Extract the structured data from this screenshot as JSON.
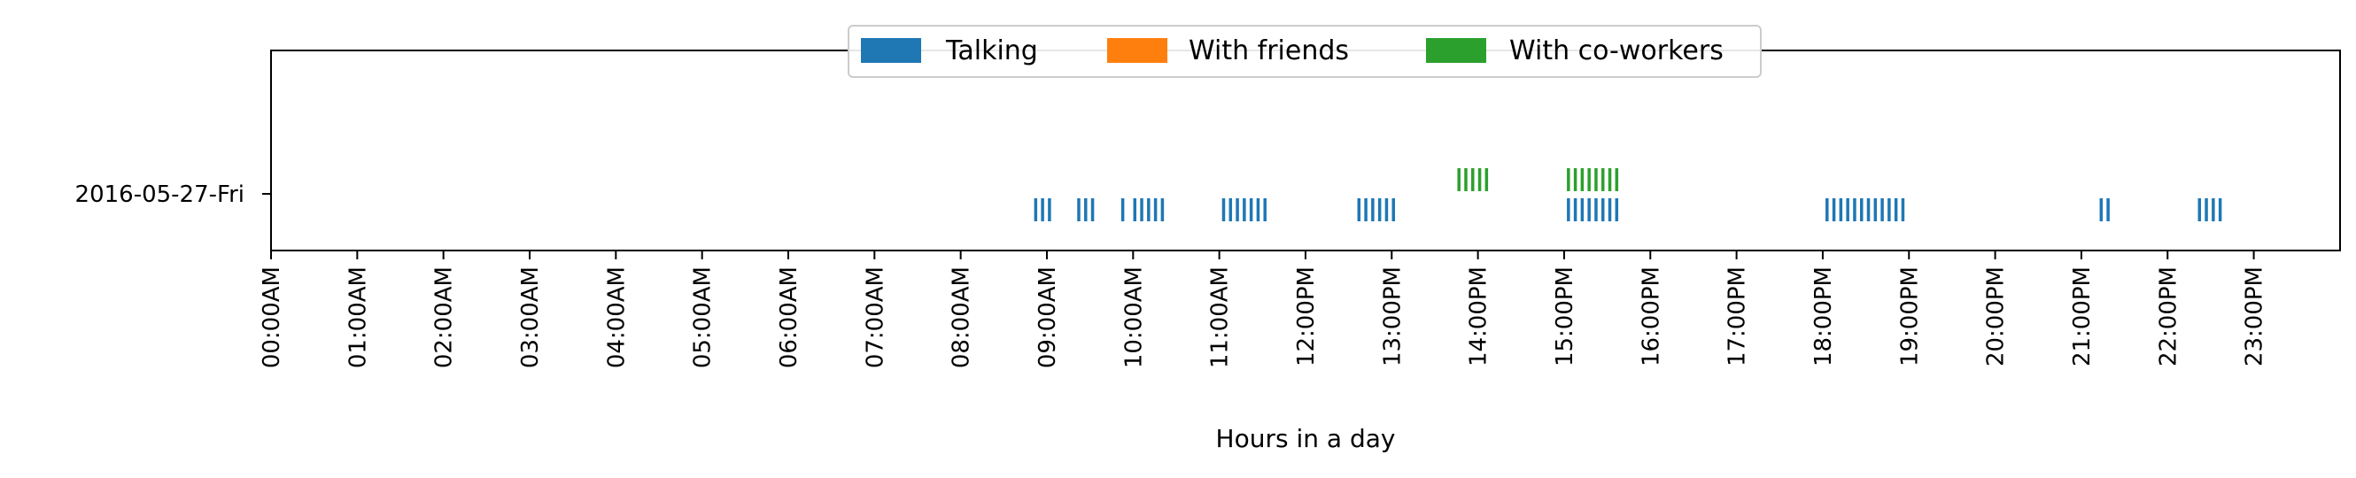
{
  "chart_data": {
    "type": "scatter",
    "title": "",
    "xlabel": "Hours in a day",
    "ylabel": "",
    "xlim": [
      0,
      24
    ],
    "categories": [
      "2016-05-27-Fri"
    ],
    "x_ticks": [
      {
        "value": 0,
        "label": "00:00AM"
      },
      {
        "value": 1,
        "label": "01:00AM"
      },
      {
        "value": 2,
        "label": "02:00AM"
      },
      {
        "value": 3,
        "label": "03:00AM"
      },
      {
        "value": 4,
        "label": "04:00AM"
      },
      {
        "value": 5,
        "label": "05:00AM"
      },
      {
        "value": 6,
        "label": "06:00AM"
      },
      {
        "value": 7,
        "label": "07:00AM"
      },
      {
        "value": 8,
        "label": "08:00AM"
      },
      {
        "value": 9,
        "label": "09:00AM"
      },
      {
        "value": 10,
        "label": "10:00AM"
      },
      {
        "value": 11,
        "label": "11:00AM"
      },
      {
        "value": 12,
        "label": "12:00PM"
      },
      {
        "value": 13,
        "label": "13:00PM"
      },
      {
        "value": 14,
        "label": "14:00PM"
      },
      {
        "value": 15,
        "label": "15:00PM"
      },
      {
        "value": 16,
        "label": "16:00PM"
      },
      {
        "value": 17,
        "label": "17:00PM"
      },
      {
        "value": 18,
        "label": "18:00PM"
      },
      {
        "value": 19,
        "label": "19:00PM"
      },
      {
        "value": 20,
        "label": "20:00PM"
      },
      {
        "value": 21,
        "label": "21:00PM"
      },
      {
        "value": 22,
        "label": "22:00PM"
      },
      {
        "value": 23,
        "label": "23:00PM"
      }
    ],
    "legend": {
      "placement": "top-center"
    },
    "series": [
      {
        "name": "Talking",
        "color": "#1f77b4",
        "x": [
          8.87,
          8.95,
          9.03,
          9.37,
          9.45,
          9.53,
          9.88,
          10.02,
          10.1,
          10.18,
          10.26,
          10.34,
          11.05,
          11.13,
          11.21,
          11.29,
          11.37,
          11.45,
          11.53,
          12.62,
          12.7,
          12.78,
          12.86,
          12.94,
          13.02,
          15.05,
          15.13,
          15.21,
          15.29,
          15.37,
          15.45,
          15.53,
          15.61,
          18.05,
          18.13,
          18.21,
          18.29,
          18.37,
          18.45,
          18.53,
          18.61,
          18.69,
          18.77,
          18.85,
          18.93,
          21.23,
          21.31,
          22.37,
          22.45,
          22.53,
          22.61
        ]
      },
      {
        "name": "With friends",
        "color": "#ff7f0e",
        "x": []
      },
      {
        "name": "With co-workers",
        "color": "#2ca02c",
        "x": [
          13.78,
          13.86,
          13.94,
          14.02,
          14.1,
          15.05,
          15.13,
          15.21,
          15.29,
          15.37,
          15.45,
          15.53,
          15.61
        ]
      }
    ]
  }
}
